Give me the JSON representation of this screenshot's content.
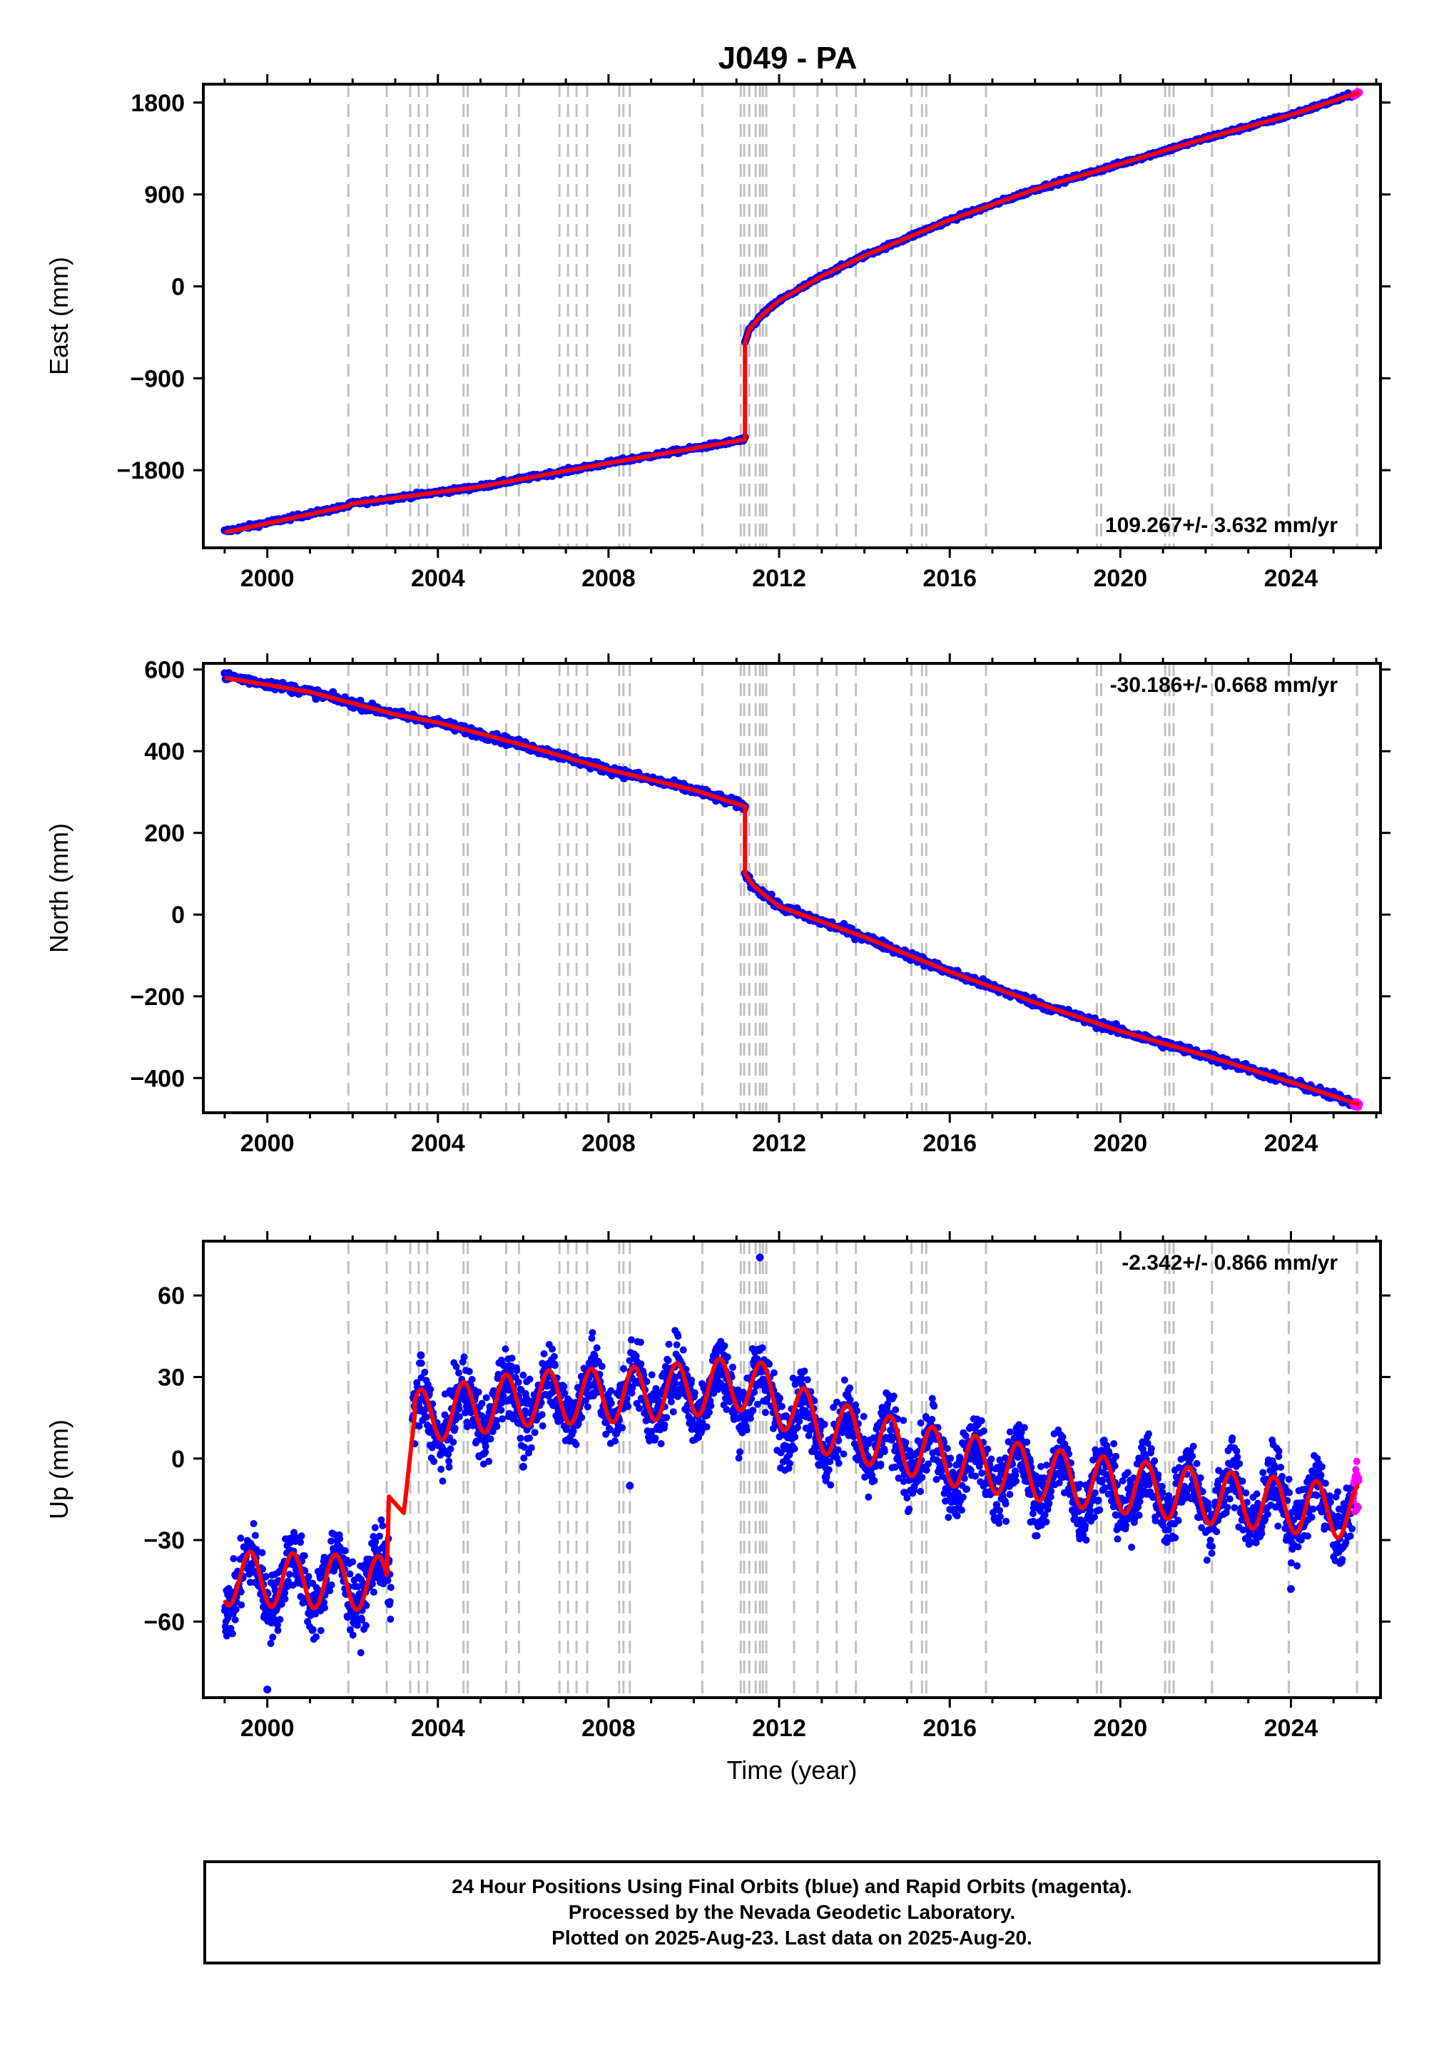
{
  "title": "J049 - PA",
  "colors": {
    "final_orbits": "#0000ff",
    "rapid_orbits": "#ff00ff",
    "model_fit": "#ff0000",
    "equipment_change_lines": "#c0c0c0"
  },
  "footer": {
    "line1": "24 Hour Positions Using Final Orbits (blue) and Rapid Orbits (magenta).",
    "line2": "Processed by the Nevada Geodetic Laboratory.",
    "line3": "Plotted on 2025-Aug-23. Last data on 2025-Aug-20."
  },
  "chart_data": [
    {
      "type": "scatter",
      "ylabel": "East (mm)",
      "xlabel": "",
      "xlim": [
        1998.5,
        2026.1
      ],
      "ylim": [
        -2560,
        1980
      ],
      "xticks": [
        2000,
        2004,
        2008,
        2012,
        2016,
        2020,
        2024
      ],
      "yticks": [
        -1800,
        -900,
        0,
        900,
        1800
      ],
      "ytick_labels": [
        "−1800",
        "−900",
        "0",
        "900",
        "1800"
      ],
      "rate_label": "109.267+/- 3.632 mm/yr",
      "rate_position": "bottom-right",
      "grid": false,
      "series": [
        {
          "kind": "observations",
          "x": [
            1999.0,
            2001.9,
            2001.95,
            2005.0,
            2008.0,
            2011.2
          ],
          "y": [
            -2400,
            -2150,
            -2130,
            -1960,
            -1730,
            -1500
          ]
        },
        {
          "kind": "observations",
          "x": [
            2011.2,
            2011.3,
            2011.6,
            2012.0,
            2013.0,
            2014.0,
            2016.0,
            2018.0,
            2020.0,
            2022.0,
            2024.0,
            2025.6
          ],
          "y": [
            -560,
            -420,
            -280,
            -140,
            100,
            300,
            650,
            950,
            1200,
            1450,
            1680,
            1900
          ]
        },
        {
          "kind": "model",
          "x": [
            1999.0,
            2001.9,
            2001.95,
            2005.0,
            2008.0,
            2011.2,
            2011.2,
            2011.3,
            2011.6,
            2012.0,
            2013.0,
            2014.0,
            2016.0,
            2018.0,
            2020.0,
            2022.0,
            2024.0,
            2025.6
          ],
          "y": [
            -2410,
            -2150,
            -2130,
            -1960,
            -1730,
            -1500,
            -560,
            -420,
            -280,
            -140,
            100,
            300,
            650,
            950,
            1200,
            1450,
            1680,
            1900
          ]
        }
      ]
    },
    {
      "type": "scatter",
      "ylabel": "North (mm)",
      "xlabel": "",
      "xlim": [
        1998.5,
        2026.1
      ],
      "ylim": [
        -485,
        615
      ],
      "xticks": [
        2000,
        2004,
        2008,
        2012,
        2016,
        2020,
        2024
      ],
      "yticks": [
        -400,
        -200,
        0,
        200,
        400,
        600
      ],
      "ytick_labels": [
        "−400",
        "−200",
        "0",
        "200",
        "400",
        "600"
      ],
      "rate_label": "-30.186+/- 0.668 mm/yr",
      "rate_position": "top-right",
      "grid": false,
      "series": [
        {
          "kind": "observations",
          "x": [
            1999.0,
            2001.0,
            2003.0,
            2004.0,
            2006.0,
            2008.0,
            2010.0,
            2011.2
          ],
          "y": [
            585,
            545,
            490,
            470,
            415,
            355,
            305,
            265
          ]
        },
        {
          "kind": "observations",
          "x": [
            2011.2,
            2011.4,
            2012.0,
            2014.0,
            2016.0,
            2018.0,
            2020.0,
            2022.0,
            2024.0,
            2025.6
          ],
          "y": [
            100,
            70,
            20,
            -55,
            -140,
            -215,
            -285,
            -345,
            -410,
            -465
          ]
        },
        {
          "kind": "model",
          "x": [
            1999.0,
            2001.0,
            2003.0,
            2004.0,
            2006.0,
            2008.0,
            2010.0,
            2011.2,
            2011.2,
            2011.4,
            2012.0,
            2014.0,
            2016.0,
            2018.0,
            2020.0,
            2022.0,
            2024.0,
            2025.6
          ],
          "y": [
            580,
            545,
            490,
            470,
            415,
            355,
            305,
            265,
            100,
            70,
            20,
            -55,
            -140,
            -215,
            -285,
            -345,
            -410,
            -465
          ]
        }
      ]
    },
    {
      "type": "scatter",
      "ylabel": "Up (mm)",
      "xlabel": "Time (year)",
      "xlim": [
        1998.5,
        2026.1
      ],
      "ylim": [
        -88,
        80
      ],
      "xticks": [
        2000,
        2004,
        2008,
        2012,
        2016,
        2020,
        2024
      ],
      "yticks": [
        -60,
        -30,
        0,
        30,
        60
      ],
      "ytick_labels": [
        "−60",
        "−30",
        "0",
        "30",
        "60"
      ],
      "rate_label": "-2.342+/- 0.866 mm/yr",
      "rate_position": "top-right",
      "grid": false,
      "series": [
        {
          "kind": "observations",
          "x": [
            1999.0,
            2001.0,
            2002.9
          ],
          "y": [
            -45,
            -45,
            -45
          ]
        },
        {
          "kind": "observations",
          "x": [
            2003.4,
            2006.0,
            2009.0,
            2011.3,
            2013.0,
            2016.0,
            2019.0,
            2022.0,
            2025.6
          ],
          "y": [
            12,
            22,
            24,
            26,
            10,
            -2,
            -10,
            -14,
            -20
          ]
        },
        {
          "kind": "model",
          "x": [
            1999.0,
            2002.8,
            2002.85,
            2003.2,
            2003.45,
            2006.0,
            2009.0,
            2011.3,
            2013.0,
            2016.0,
            2019.0,
            2022.0,
            2025.6
          ],
          "y": [
            -44,
            -46,
            -14,
            -20,
            15,
            22,
            24,
            28,
            12,
            0,
            -8,
            -14,
            -20
          ]
        }
      ],
      "outliers": {
        "x": [
          2011.55,
          2008.5,
          2006.0,
          2024.0,
          2003.6,
          2000.0
        ],
        "y": [
          74,
          -10,
          -3,
          -48,
          38,
          -85
        ]
      }
    }
  ],
  "equipment_changes": [
    2001.9,
    2002.8,
    2003.35,
    2003.55,
    2003.75,
    2004.6,
    2004.7,
    2005.6,
    2005.9,
    2006.85,
    2007.05,
    2007.25,
    2007.5,
    2008.25,
    2008.35,
    2008.5,
    2010.2,
    2011.1,
    2011.18,
    2011.3,
    2011.45,
    2011.55,
    2011.62,
    2011.7,
    2012.35,
    2012.9,
    2013.35,
    2013.8,
    2015.1,
    2015.35,
    2015.45,
    2016.85,
    2019.45,
    2019.55,
    2021.05,
    2021.15,
    2021.25,
    2022.15,
    2023.95,
    2025.55
  ]
}
